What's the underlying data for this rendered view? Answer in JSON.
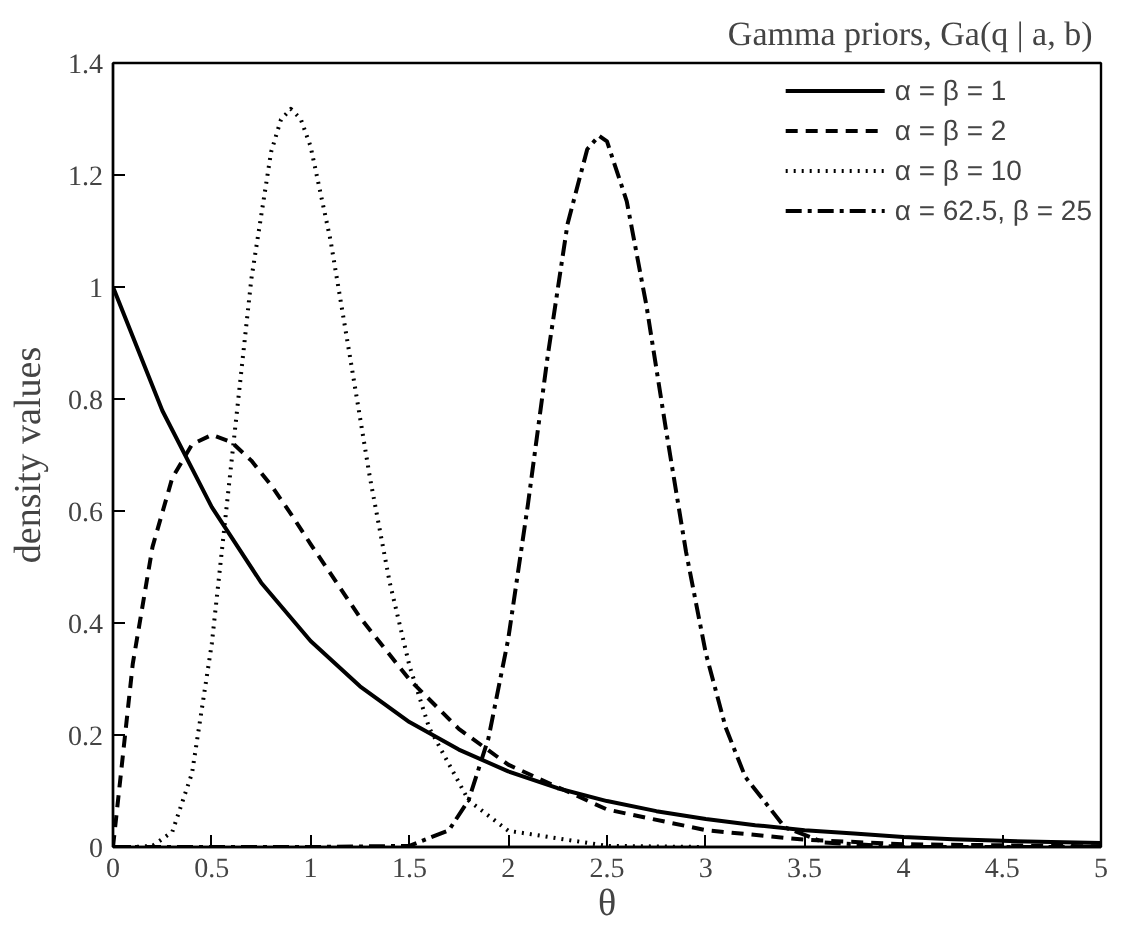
{
  "chart_data": {
    "type": "line",
    "title": "Gamma priors,  Ga(q | a, b)",
    "xlabel": "θ",
    "ylabel": "density values",
    "xlim": [
      0,
      5
    ],
    "ylim": [
      0,
      1.4
    ],
    "xticks": [
      0,
      0.5,
      1,
      1.5,
      2,
      2.5,
      3,
      3.5,
      4,
      4.5,
      5
    ],
    "yticks": [
      0,
      0.2,
      0.4,
      0.6,
      0.8,
      1,
      1.2,
      1.4
    ],
    "grid": false,
    "legend": "top right",
    "series": [
      {
        "name": "α = β = 1",
        "color": "#000000",
        "line_style": "solid",
        "x": [
          0,
          0.25,
          0.5,
          0.75,
          1,
          1.25,
          1.5,
          1.75,
          2,
          2.25,
          2.5,
          2.75,
          3,
          3.25,
          3.5,
          3.75,
          4,
          4.25,
          4.5,
          4.75,
          5
        ],
        "values": [
          1,
          0.779,
          0.607,
          0.472,
          0.368,
          0.287,
          0.223,
          0.174,
          0.135,
          0.105,
          0.082,
          0.064,
          0.05,
          0.039,
          0.03,
          0.024,
          0.018,
          0.014,
          0.011,
          0.009,
          0.007
        ]
      },
      {
        "name": "α = β = 2",
        "color": "#000000",
        "line_style": "dashed",
        "x": [
          0,
          0.1,
          0.2,
          0.3,
          0.4,
          0.5,
          0.6,
          0.7,
          0.8,
          0.9,
          1,
          1.25,
          1.5,
          1.75,
          2,
          2.5,
          3,
          3.5,
          4,
          5
        ],
        "values": [
          0,
          0.327,
          0.536,
          0.659,
          0.719,
          0.736,
          0.723,
          0.69,
          0.646,
          0.595,
          0.541,
          0.41,
          0.299,
          0.211,
          0.147,
          0.067,
          0.03,
          0.013,
          0.005,
          0.001
        ]
      },
      {
        "name": "α = β = 10",
        "color": "#000000",
        "line_style": "dotted",
        "x": [
          0,
          0.1,
          0.2,
          0.3,
          0.4,
          0.5,
          0.6,
          0.7,
          0.8,
          0.85,
          0.9,
          0.95,
          1,
          1.1,
          1.2,
          1.3,
          1.4,
          1.5,
          1.6,
          1.8,
          2,
          2.5,
          3
        ],
        "values": [
          0,
          0,
          0.002,
          0.027,
          0.132,
          0.363,
          0.689,
          1.014,
          1.241,
          1.299,
          1.318,
          1.3,
          1.251,
          1.085,
          0.874,
          0.66,
          0.473,
          0.324,
          0.213,
          0.083,
          0.029,
          0.002,
          0
        ]
      },
      {
        "name": "α = 62.5, β = 25",
        "color": "#000000",
        "line_style": "dashdot",
        "x": [
          0,
          1,
          1.5,
          1.7,
          1.8,
          1.9,
          2,
          2.1,
          2.2,
          2.3,
          2.4,
          2.46,
          2.5,
          2.6,
          2.7,
          2.8,
          2.9,
          3,
          3.1,
          3.2,
          3.4,
          3.6,
          4,
          5
        ],
        "values": [
          0,
          0,
          0.002,
          0.03,
          0.084,
          0.194,
          0.371,
          0.612,
          0.877,
          1.112,
          1.246,
          1.27,
          1.26,
          1.153,
          0.966,
          0.742,
          0.527,
          0.346,
          0.214,
          0.125,
          0.035,
          0.008,
          0,
          0
        ]
      }
    ]
  }
}
